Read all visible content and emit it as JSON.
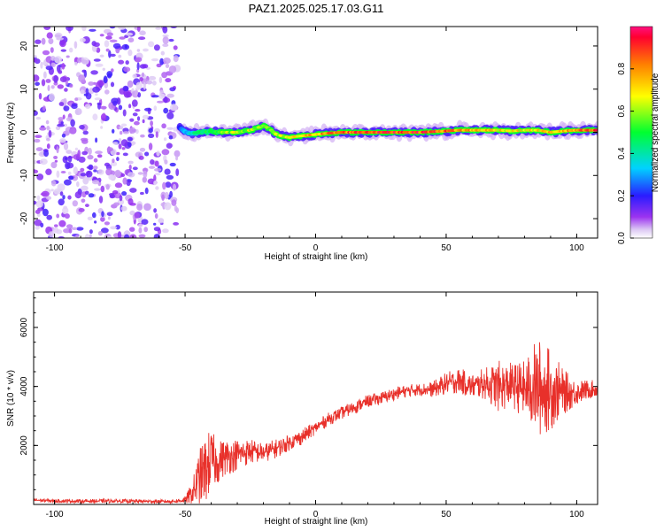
{
  "title": "PAZ1.2025.025.17.03.G11",
  "chart_data": [
    {
      "type": "heatmap",
      "xlabel": "Height of straight line (km)",
      "ylabel": "Frequency (Hz)",
      "xlim": [
        -108,
        108
      ],
      "ylim": [
        -24.5,
        24.5
      ],
      "xticks": [
        -100,
        -50,
        0,
        50,
        100
      ],
      "xtick_labels": [
        "-100",
        "-50",
        "0",
        "50",
        "100"
      ],
      "yticks": [
        -20,
        -10,
        0,
        10,
        20
      ],
      "ytick_labels": [
        "-20",
        "-10",
        "0",
        "10",
        "20"
      ],
      "ridge_frequency": {
        "x": [
          -52,
          -50,
          -48,
          -45,
          -40,
          -35,
          -30,
          -25,
          -20,
          -18,
          -15,
          -12,
          -10,
          -8,
          -5,
          0,
          5,
          10,
          20,
          30,
          40,
          50,
          55,
          60,
          65,
          70,
          75,
          80,
          85,
          90,
          95,
          100,
          105,
          108
        ],
        "y": [
          1.0,
          0.2,
          -0.3,
          0.0,
          0.2,
          0.0,
          0.0,
          0.5,
          1.5,
          1.0,
          -0.5,
          -1.0,
          -1.2,
          -1.0,
          -0.8,
          -0.5,
          -0.2,
          0.0,
          0.0,
          0.0,
          0.0,
          0.3,
          0.5,
          0.5,
          0.5,
          0.5,
          0.3,
          0.5,
          0.5,
          0.0,
          0.3,
          0.5,
          0.5,
          0.5
        ]
      },
      "ridge_amplitude": {
        "x": [
          -52,
          -45,
          -30,
          -15,
          0,
          20,
          40,
          60,
          80,
          100,
          108
        ],
        "y": [
          0.25,
          0.45,
          0.65,
          0.6,
          0.8,
          0.95,
          0.95,
          0.8,
          0.7,
          0.8,
          0.9
        ]
      },
      "noise_region_km": [
        -108,
        -53
      ]
    },
    {
      "type": "colorbar",
      "label": "Normalized spectral amplitude",
      "range": [
        0.0,
        1.0
      ],
      "ticks": [
        0.0,
        0.2,
        0.4,
        0.6,
        0.8
      ],
      "tick_labels": [
        "0.0",
        "0.2",
        "0.4",
        "0.6",
        "0.8"
      ]
    },
    {
      "type": "line",
      "xlabel": "Height of straight line (km)",
      "ylabel": "SNR (10 * v/v)",
      "xlim": [
        -108,
        108
      ],
      "ylim": [
        0,
        7200
      ],
      "xticks": [
        -100,
        -50,
        0,
        50,
        100
      ],
      "xtick_labels": [
        "-100",
        "-50",
        "0",
        "50",
        "100"
      ],
      "yticks": [
        2000,
        4000,
        6000
      ],
      "ytick_labels": [
        "2000",
        "4000",
        "6000"
      ],
      "series": [
        {
          "color": "#e8302a",
          "x": [
            -108,
            -100,
            -90,
            -80,
            -70,
            -60,
            -55,
            -50,
            -47,
            -45,
            -42,
            -40,
            -38,
            -35,
            -30,
            -25,
            -20,
            -15,
            -10,
            -5,
            0,
            5,
            10,
            15,
            20,
            25,
            30,
            35,
            40,
            45,
            50,
            55,
            60,
            65,
            70,
            75,
            80,
            85,
            90,
            95,
            100,
            105,
            108
          ],
          "y": [
            150,
            120,
            110,
            120,
            110,
            100,
            100,
            150,
            400,
            800,
            1200,
            1500,
            1400,
            1600,
            1700,
            1800,
            1750,
            1900,
            2100,
            2300,
            2600,
            2900,
            3100,
            3300,
            3500,
            3600,
            3750,
            3850,
            3900,
            3900,
            4100,
            4200,
            4000,
            4100,
            4000,
            4050,
            3900,
            3950,
            3900,
            3800,
            3800,
            3900,
            3900
          ],
          "noise_amplitude": [
            60,
            60,
            60,
            60,
            60,
            60,
            60,
            100,
            400,
            900,
            1100,
            1000,
            700,
            600,
            500,
            400,
            300,
            300,
            250,
            250,
            200,
            200,
            200,
            200,
            200,
            200,
            200,
            200,
            200,
            250,
            350,
            400,
            400,
            500,
            800,
            700,
            900,
            1600,
            1300,
            700,
            400,
            300,
            250
          ]
        }
      ]
    }
  ]
}
